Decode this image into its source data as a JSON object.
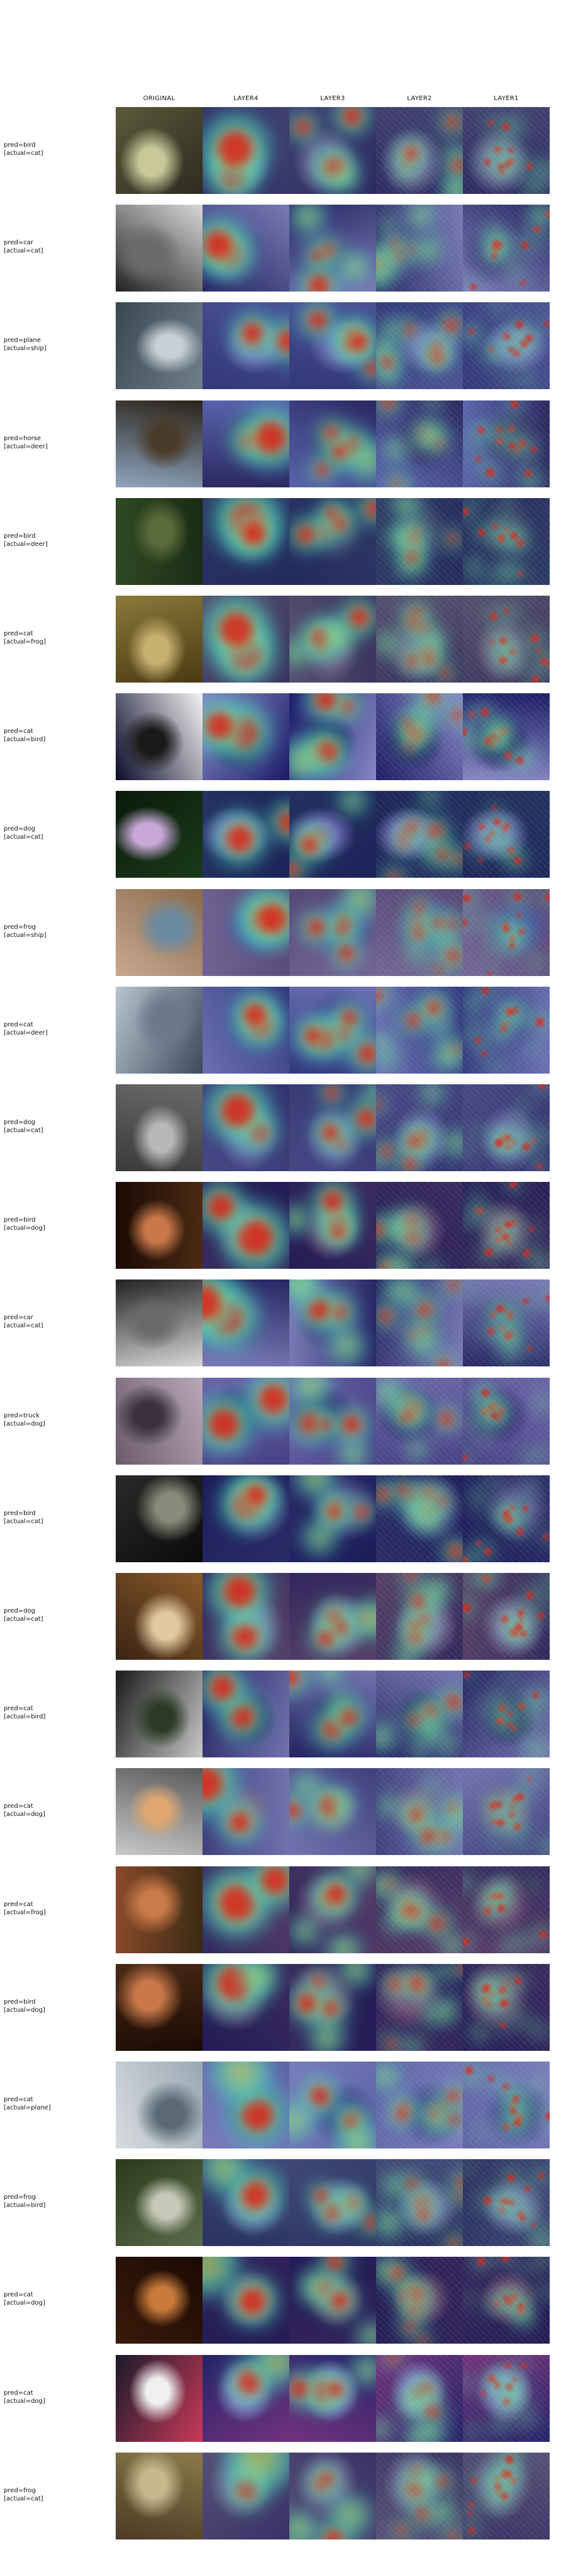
{
  "columns": [
    "ORIGINAL",
    "LAYER4",
    "LAYER3",
    "LAYER2",
    "LAYER1"
  ],
  "colors": {
    "heat_low": "#2b2b9a",
    "heat_mid": "#3fd0c8",
    "heat_warm": "#f3e03a",
    "heat_high": "#d8221a"
  },
  "rows": [
    {
      "pred": "pred=bird",
      "actual": "[actual=cat]",
      "photo": [
        "#5a5a3a",
        "#c8c89a",
        "#2e2a20"
      ]
    },
    {
      "pred": "pred=car",
      "actual": "[actual=cat]",
      "photo": [
        "#d8d8d8",
        "#6a6a6a",
        "#222222"
      ]
    },
    {
      "pred": "pred=plane",
      "actual": "[actual=ship]",
      "photo": [
        "#6e7f8c",
        "#c8d0d6",
        "#3a4850"
      ]
    },
    {
      "pred": "pred=horse",
      "actual": "[actual=deer]",
      "photo": [
        "#8fa6c0",
        "#4a3a2a",
        "#2a2218"
      ]
    },
    {
      "pred": "pred=bird",
      "actual": "[actual=deer]",
      "photo": [
        "#2f4a24",
        "#5a6a3a",
        "#1a2a14"
      ]
    },
    {
      "pred": "pred=cat",
      "actual": "[actual=frog]",
      "photo": [
        "#8a7a3a",
        "#c8b070",
        "#4a3a14"
      ]
    },
    {
      "pred": "pred=cat",
      "actual": "[actual=bird]",
      "photo": [
        "#f4f4f4",
        "#1a1a1a",
        "#0a0a2a"
      ]
    },
    {
      "pred": "pred=dog",
      "actual": "[actual=cat]",
      "photo": [
        "#1a3a1a",
        "#c8a8d8",
        "#0a1a0a"
      ]
    },
    {
      "pred": "pred=frog",
      "actual": "[actual=ship]",
      "photo": [
        "#c8a890",
        "#6a8aa0",
        "#8a6a4a"
      ]
    },
    {
      "pred": "pred=cat",
      "actual": "[actual=deer]",
      "photo": [
        "#b8c4d0",
        "#6a7a8a",
        "#3a4a5a"
      ]
    },
    {
      "pred": "pred=dog",
      "actual": "[actual=cat]",
      "photo": [
        "#6a6a6a",
        "#b8b8b8",
        "#3a3a3a"
      ]
    },
    {
      "pred": "pred=bird",
      "actual": "[actual=dog]",
      "photo": [
        "#4a2a14",
        "#c8784a",
        "#1a0a04"
      ]
    },
    {
      "pred": "pred=car",
      "actual": "[actual=cat]",
      "photo": [
        "#d8d8d8",
        "#6a6a6a",
        "#222222"
      ]
    },
    {
      "pred": "pred=truck",
      "actual": "[actual=dog]",
      "photo": [
        "#6a5a6a",
        "#3a3040",
        "#b8a8b8"
      ]
    },
    {
      "pred": "pred=bird",
      "actual": "[actual=cat]",
      "photo": [
        "#2a2a2a",
        "#8a8a7a",
        "#0a0a0a"
      ]
    },
    {
      "pred": "pred=dog",
      "actual": "[actual=cat]",
      "photo": [
        "#8a5a2a",
        "#e0c8a0",
        "#3a2414"
      ]
    },
    {
      "pred": "pred=cat",
      "actual": "[actual=bird]",
      "photo": [
        "#c8c8c8",
        "#2a3a24",
        "#1a1a1a"
      ]
    },
    {
      "pred": "pred=cat",
      "actual": "[actual=dog]",
      "photo": [
        "#c8c8c8",
        "#e0a870",
        "#5a5a5a"
      ]
    },
    {
      "pred": "pred=cat",
      "actual": "[actual=frog]",
      "photo": [
        "#8a4a2a",
        "#c87a4a",
        "#3a2a14"
      ]
    },
    {
      "pred": "pred=bird",
      "actual": "[actual=dog]",
      "photo": [
        "#4a2a14",
        "#c8784a",
        "#1a0a04"
      ]
    },
    {
      "pred": "pred=cat",
      "actual": "[actual=plane]",
      "photo": [
        "#9aa8b4",
        "#5a6a74",
        "#d8dce0"
      ]
    },
    {
      "pred": "pred=frog",
      "actual": "[actual=bird]",
      "photo": [
        "#5a6a4a",
        "#c8c8b8",
        "#2a3a1a"
      ]
    },
    {
      "pred": "pred=cat",
      "actual": "[actual=dog]",
      "photo": [
        "#3a1a0a",
        "#c87a3a",
        "#1a0a04"
      ]
    },
    {
      "pred": "pred=cat",
      "actual": "[actual=dog]",
      "photo": [
        "#1a1a2a",
        "#f0f0f0",
        "#c83a5a"
      ]
    },
    {
      "pred": "pred=frog",
      "actual": "[actual=cat]",
      "photo": [
        "#8a7a4a",
        "#c8b890",
        "#4a3a24"
      ]
    }
  ]
}
